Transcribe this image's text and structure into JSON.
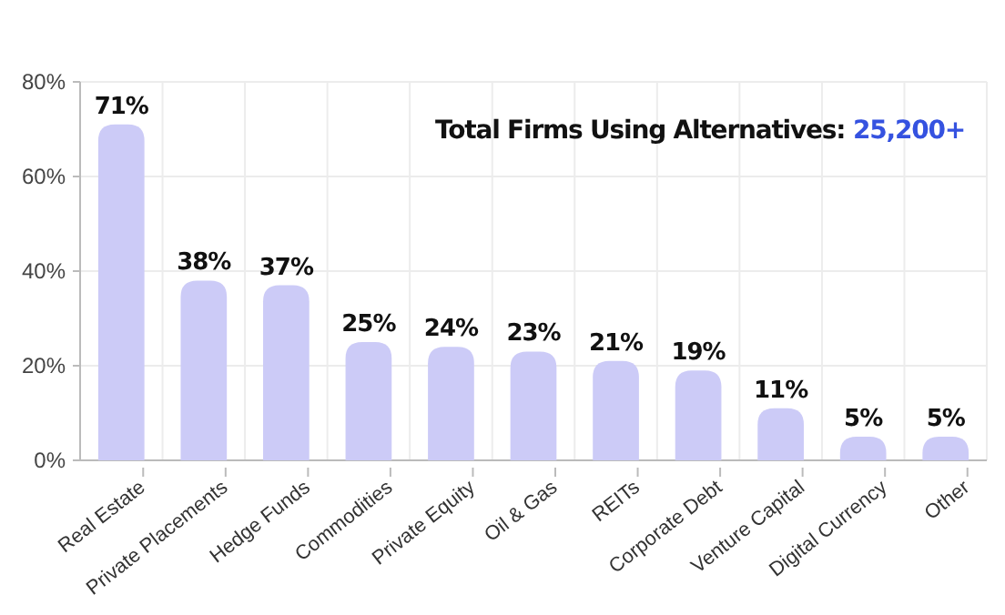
{
  "chart_data": {
    "type": "bar",
    "categories": [
      "Real Estate",
      "Private Placements",
      "Hedge Funds",
      "Commodities",
      "Private Equity",
      "Oil & Gas",
      "REITs",
      "Corporate Debt",
      "Venture Capital",
      "Digital Currency",
      "Other"
    ],
    "values": [
      71,
      38,
      37,
      25,
      24,
      23,
      21,
      19,
      11,
      5,
      5
    ],
    "value_labels": [
      "71%",
      "38%",
      "37%",
      "25%",
      "24%",
      "23%",
      "21%",
      "19%",
      "11%",
      "5%",
      "5%"
    ],
    "color": "#cccbf7",
    "ylim": [
      0,
      80
    ],
    "yticks": [
      {
        "value": 0,
        "label": "0%"
      },
      {
        "value": 20,
        "label": "20%"
      },
      {
        "value": 40,
        "label": "40%"
      },
      {
        "value": 60,
        "label": "60%"
      },
      {
        "value": 80,
        "label": "80%"
      }
    ],
    "grid": true,
    "annotations": [
      "Total Firms Using Alternatives: 25,200+"
    ]
  }
}
